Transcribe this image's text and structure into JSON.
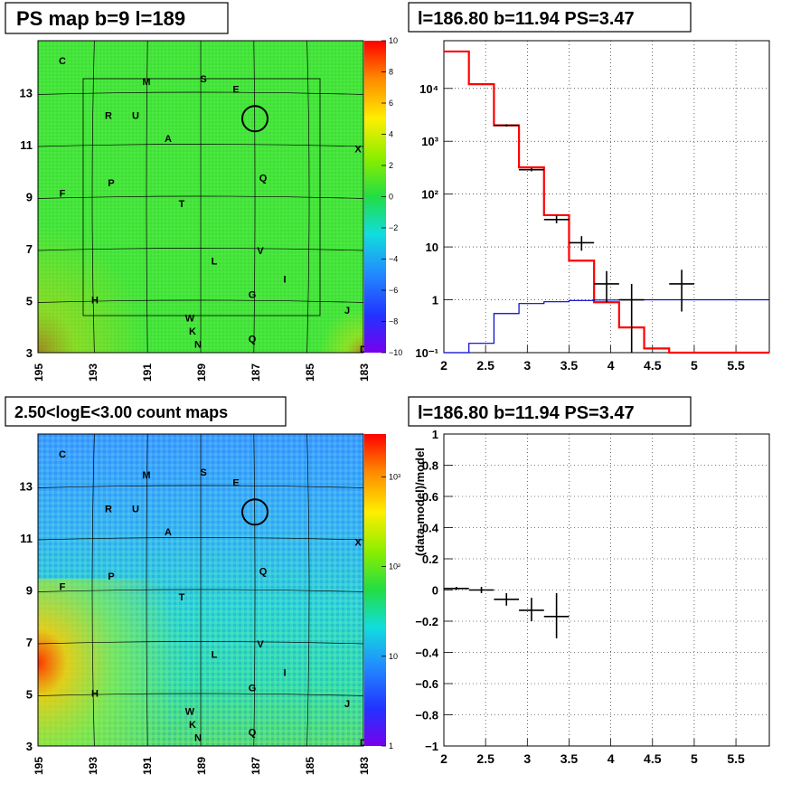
{
  "colors": {
    "hist_red": "#ff0000",
    "model_blue": "#0000cc",
    "data_black": "#000000",
    "map_green": "#44e63a",
    "map_cyan": "#2ee0c8"
  },
  "panels": {
    "ps_map": {
      "title": "PS map b=9 l=189",
      "x_ticks": [
        "195",
        "193",
        "191",
        "189",
        "187",
        "185",
        "183"
      ],
      "y_ticks": [
        "3",
        "5",
        "7",
        "9",
        "11",
        "13"
      ],
      "colorbar_ticks": [
        "10",
        "8",
        "6",
        "4",
        "2",
        "0",
        "−2",
        "−4",
        "−6",
        "−8",
        "−10"
      ],
      "labels": [
        "C",
        "M",
        "S",
        "E",
        "R",
        "U",
        "A",
        "X",
        "F",
        "P",
        "Q",
        "T",
        "L",
        "V",
        "I",
        "H",
        "G",
        "J",
        "W",
        "K",
        "Q",
        "D",
        "N"
      ]
    },
    "count_map": {
      "title": "2.50<logE<3.00 count maps",
      "x_ticks": [
        "195",
        "193",
        "191",
        "189",
        "187",
        "185",
        "183"
      ],
      "y_ticks": [
        "3",
        "5",
        "7",
        "9",
        "11",
        "13"
      ],
      "colorbar_ticks": [
        "10³",
        "10²",
        "10",
        "1"
      ],
      "labels": [
        "C",
        "M",
        "S",
        "E",
        "R",
        "U",
        "A",
        "X",
        "F",
        "P",
        "Q",
        "T",
        "L",
        "V",
        "I",
        "H",
        "G",
        "J",
        "W",
        "K",
        "Q",
        "D",
        "N"
      ]
    },
    "spectrum": {
      "title": "l=186.80 b=11.94 PS=3.47"
    },
    "residual": {
      "title": "l=186.80 b=11.94 PS=3.47"
    }
  },
  "chart_data": [
    {
      "type": "heatmap",
      "title": "PS map b=9 l=189",
      "x_ticks": [
        195,
        193,
        191,
        189,
        187,
        185,
        183
      ],
      "y_ticks": [
        3,
        5,
        7,
        9,
        11,
        13
      ],
      "xlim": [
        195,
        183
      ],
      "ylim": [
        3,
        15
      ],
      "zlim": [
        -10,
        10
      ],
      "circle": {
        "l": 187,
        "b": 12
      },
      "source_labels": [
        {
          "t": "C",
          "l": 194.1,
          "b": 14.1
        },
        {
          "t": "M",
          "l": 191.0,
          "b": 13.3
        },
        {
          "t": "S",
          "l": 188.9,
          "b": 13.4
        },
        {
          "t": "E",
          "l": 187.7,
          "b": 13.0
        },
        {
          "t": "R",
          "l": 192.4,
          "b": 12.0
        },
        {
          "t": "U",
          "l": 191.4,
          "b": 12.0
        },
        {
          "t": "A",
          "l": 190.2,
          "b": 11.1
        },
        {
          "t": "X",
          "l": 183.2,
          "b": 10.7
        },
        {
          "t": "F",
          "l": 194.1,
          "b": 9.0
        },
        {
          "t": "P",
          "l": 192.3,
          "b": 9.4
        },
        {
          "t": "Q",
          "l": 186.7,
          "b": 9.6
        },
        {
          "t": "T",
          "l": 189.7,
          "b": 8.6
        },
        {
          "t": "L",
          "l": 188.5,
          "b": 6.4
        },
        {
          "t": "V",
          "l": 186.8,
          "b": 6.8
        },
        {
          "t": "I",
          "l": 185.9,
          "b": 5.7
        },
        {
          "t": "H",
          "l": 192.9,
          "b": 4.9
        },
        {
          "t": "G",
          "l": 187.1,
          "b": 5.1
        },
        {
          "t": "J",
          "l": 183.6,
          "b": 4.5
        },
        {
          "t": "W",
          "l": 189.4,
          "b": 4.2
        },
        {
          "t": "K",
          "l": 189.3,
          "b": 3.7
        },
        {
          "t": "Q",
          "l": 187.1,
          "b": 3.4
        },
        {
          "t": "D",
          "l": 183.0,
          "b": 3.0
        },
        {
          "t": "N",
          "l": 189.1,
          "b": 3.2
        }
      ]
    },
    {
      "type": "heatmap",
      "title": "2.50<logE<3.00 count maps",
      "x_ticks": [
        195,
        193,
        191,
        189,
        187,
        185,
        183
      ],
      "y_ticks": [
        3,
        5,
        7,
        9,
        11,
        13
      ],
      "xlim": [
        195,
        183
      ],
      "ylim": [
        3,
        15
      ],
      "zlim": [
        1,
        3000
      ],
      "zlog": true,
      "circle": {
        "l": 187,
        "b": 12
      },
      "source_labels": [
        {
          "t": "C",
          "l": 194.1,
          "b": 14.1
        },
        {
          "t": "M",
          "l": 191.0,
          "b": 13.3
        },
        {
          "t": "S",
          "l": 188.9,
          "b": 13.4
        },
        {
          "t": "E",
          "l": 187.7,
          "b": 13.0
        },
        {
          "t": "R",
          "l": 192.4,
          "b": 12.0
        },
        {
          "t": "U",
          "l": 191.4,
          "b": 12.0
        },
        {
          "t": "A",
          "l": 190.2,
          "b": 11.1
        },
        {
          "t": "X",
          "l": 183.2,
          "b": 10.7
        },
        {
          "t": "F",
          "l": 194.1,
          "b": 9.0
        },
        {
          "t": "P",
          "l": 192.3,
          "b": 9.4
        },
        {
          "t": "Q",
          "l": 186.7,
          "b": 9.6
        },
        {
          "t": "T",
          "l": 189.7,
          "b": 8.6
        },
        {
          "t": "L",
          "l": 188.5,
          "b": 6.4
        },
        {
          "t": "V",
          "l": 186.8,
          "b": 6.8
        },
        {
          "t": "I",
          "l": 185.9,
          "b": 5.7
        },
        {
          "t": "H",
          "l": 192.9,
          "b": 4.9
        },
        {
          "t": "G",
          "l": 187.1,
          "b": 5.1
        },
        {
          "t": "J",
          "l": 183.6,
          "b": 4.5
        },
        {
          "t": "W",
          "l": 189.4,
          "b": 4.2
        },
        {
          "t": "K",
          "l": 189.3,
          "b": 3.7
        },
        {
          "t": "Q",
          "l": 187.1,
          "b": 3.4
        },
        {
          "t": "D",
          "l": 183.0,
          "b": 3.0
        },
        {
          "t": "N",
          "l": 189.1,
          "b": 3.2
        }
      ]
    },
    {
      "type": "line",
      "title": "l=186.80 b=11.94 PS=3.47",
      "xlim": [
        2,
        5.9
      ],
      "ylim": [
        0.1,
        80000
      ],
      "ylog": true,
      "x_ticks": [
        2,
        2.5,
        3,
        3.5,
        4,
        4.5,
        5,
        5.5
      ],
      "x_tick_labels": [
        "2",
        "2.5",
        "3",
        "3.5",
        "4",
        "4.5",
        "5",
        "5.5"
      ],
      "y_ticks": [
        0.1,
        1,
        10,
        100,
        1000,
        10000
      ],
      "y_tick_labels": [
        "10⁻¹",
        "1",
        "10",
        "10²",
        "10³",
        "10⁴"
      ],
      "grid": true,
      "series": [
        {
          "style": "step-red",
          "edges": [
            2.0,
            2.3,
            2.6,
            2.9,
            3.2,
            3.5,
            3.8,
            4.1,
            4.4,
            4.7,
            5.0,
            5.9
          ],
          "values": [
            50000,
            12000,
            2000,
            320,
            40,
            5.5,
            0.9,
            0.3,
            0.12,
            0.1,
            0.1
          ]
        },
        {
          "style": "step-blue",
          "edges": [
            2.0,
            2.3,
            2.6,
            2.9,
            3.2,
            3.5,
            3.8,
            4.1,
            4.4,
            4.7,
            5.0,
            5.9
          ],
          "values": [
            0.1,
            0.15,
            0.55,
            0.85,
            0.92,
            0.97,
            0.99,
            1.0,
            1.0,
            1.0,
            1.0
          ]
        },
        {
          "style": "errorbars",
          "points": [
            {
              "x": 2.75,
              "y": 2000,
              "xerr": 0.15,
              "ylo": 1900,
              "yhi": 2100
            },
            {
              "x": 3.05,
              "y": 290,
              "xerr": 0.15,
              "ylo": 270,
              "yhi": 310
            },
            {
              "x": 3.35,
              "y": 33,
              "xerr": 0.15,
              "ylo": 28,
              "yhi": 39
            },
            {
              "x": 3.65,
              "y": 12,
              "xerr": 0.15,
              "ylo": 8.5,
              "yhi": 16
            },
            {
              "x": 3.95,
              "y": 2.0,
              "xerr": 0.15,
              "ylo": 0.9,
              "yhi": 3.5
            },
            {
              "x": 4.25,
              "y": 1.0,
              "xerr": 0.15,
              "ylo": 0.1,
              "yhi": 2.0
            },
            {
              "x": 4.85,
              "y": 2.0,
              "xerr": 0.15,
              "ylo": 0.6,
              "yhi": 3.7
            }
          ]
        }
      ]
    },
    {
      "type": "scatter",
      "title": "l=186.80 b=11.94 PS=3.47",
      "ylabel": "(data-model)/model",
      "xlim": [
        2,
        5.9
      ],
      "ylim": [
        -1,
        1
      ],
      "x_ticks": [
        2,
        2.5,
        3,
        3.5,
        4,
        4.5,
        5,
        5.5
      ],
      "x_tick_labels": [
        "2",
        "2.5",
        "3",
        "3.5",
        "4",
        "4.5",
        "5",
        "5.5"
      ],
      "y_ticks": [
        -1,
        -0.8,
        -0.6,
        -0.4,
        -0.2,
        0,
        0.2,
        0.4,
        0.6,
        0.8,
        1
      ],
      "y_tick_labels": [
        "−1",
        "−0.8",
        "−0.6",
        "−0.4",
        "−0.2",
        "0",
        "0.2",
        "0.4",
        "0.6",
        "0.8",
        "1"
      ],
      "grid": true,
      "series": [
        {
          "style": "errorbars",
          "points": [
            {
              "x": 2.15,
              "y": 0.01,
              "xerr": 0.15,
              "ylo": 0.0,
              "yhi": 0.02
            },
            {
              "x": 2.45,
              "y": 0.0,
              "xerr": 0.15,
              "ylo": -0.02,
              "yhi": 0.02
            },
            {
              "x": 2.75,
              "y": -0.06,
              "xerr": 0.15,
              "ylo": -0.1,
              "yhi": -0.02
            },
            {
              "x": 3.05,
              "y": -0.13,
              "xerr": 0.15,
              "ylo": -0.2,
              "yhi": -0.05
            },
            {
              "x": 3.35,
              "y": -0.17,
              "xerr": 0.15,
              "ylo": -0.31,
              "yhi": -0.02
            }
          ]
        }
      ]
    }
  ]
}
